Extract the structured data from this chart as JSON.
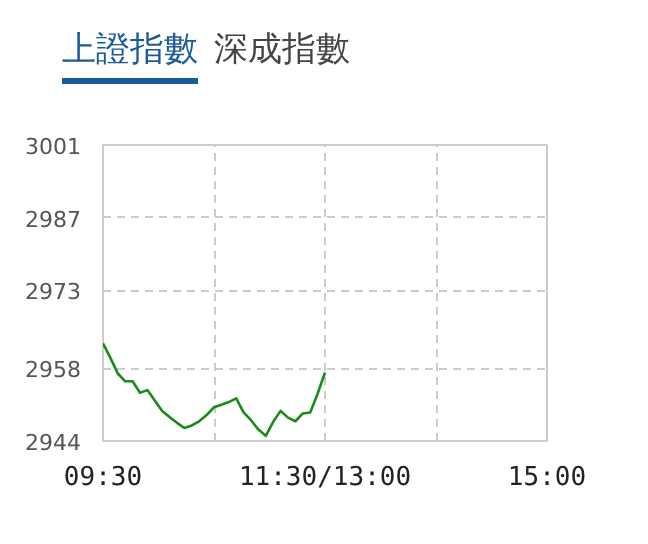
{
  "chart_data": {
    "type": "line",
    "title": "上證指數",
    "annotations": [
      "深成指數"
    ],
    "categories": [
      "09:30",
      null,
      null,
      null,
      null,
      null,
      null,
      null,
      null,
      null,
      null,
      null,
      null,
      null,
      null,
      null,
      null,
      null,
      null,
      null,
      null,
      null,
      null,
      null,
      null,
      null,
      null,
      null,
      null,
      null,
      "11:30/13:00",
      null,
      null,
      null,
      null,
      null,
      null,
      null,
      null,
      null,
      null,
      null,
      null,
      null,
      null,
      null,
      null,
      null,
      null,
      null,
      null,
      null,
      null,
      null,
      null,
      null,
      null,
      null,
      null,
      null,
      "15:00"
    ],
    "series": [
      {
        "color": "#1a8a1a",
        "values": [
          2962.8,
          2960,
          2957,
          2955.5,
          2955.5,
          2953.3,
          2953.8,
          2951.8,
          2949.8,
          2948.6,
          2947.5,
          2946.5,
          2947.0,
          2947.8,
          2949,
          2950.5,
          2951,
          2951.5,
          2952.2,
          2949.5,
          2948.0,
          2946.2,
          2945,
          2947.7,
          2949.8,
          2948.5,
          2947.8,
          2949.3,
          2949.5,
          2953.1,
          2957.2,
          null,
          null,
          null,
          null,
          null,
          null,
          null,
          null,
          null,
          null,
          null,
          null,
          null,
          null,
          null,
          null,
          null,
          null,
          null,
          null,
          null,
          null,
          null,
          null,
          null,
          null,
          null,
          null,
          null,
          null
        ]
      }
    ],
    "ylim": [
      2944,
      3001
    ],
    "yticks": [
      2944,
      2958,
      2973,
      2987,
      3001
    ],
    "grid": true
  }
}
